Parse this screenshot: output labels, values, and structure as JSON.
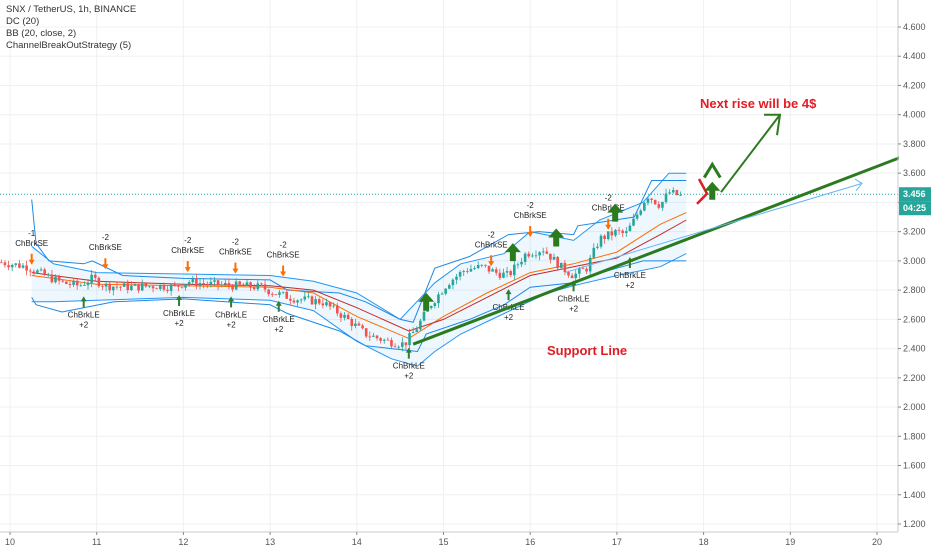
{
  "legend": {
    "symbol": "SNX / TetherUS, 1h, BINANCE",
    "dc": "DC (20)",
    "bb": "BB (20, close, 2)",
    "strategy": "ChannelBreakOutStrategy (5)"
  },
  "chart_data": {
    "type": "candlestick",
    "ylim": [
      1.2,
      4.8
    ],
    "xlim": [
      9.9,
      20.3
    ],
    "y_ticks": [
      "1.200",
      "1.400",
      "1.600",
      "1.800",
      "2.000",
      "2.200",
      "2.400",
      "2.600",
      "2.800",
      "3.000",
      "3.200",
      "3.400",
      "3.600",
      "3.800",
      "4.000",
      "4.200",
      "4.400",
      "4.600"
    ],
    "x_ticks": [
      {
        "x": 10,
        "label": "10"
      },
      {
        "x": 11,
        "label": "11"
      },
      {
        "x": 12,
        "label": "12"
      },
      {
        "x": 13,
        "label": "13"
      },
      {
        "x": 14,
        "label": "14"
      },
      {
        "x": 15,
        "label": "15"
      },
      {
        "x": 16,
        "label": "16"
      },
      {
        "x": 17,
        "label": "17"
      },
      {
        "x": 18,
        "label": "18"
      },
      {
        "x": 19,
        "label": "19"
      },
      {
        "x": 20,
        "label": "20"
      }
    ],
    "price_path": [
      [
        9.9,
        2.99
      ],
      [
        10.2,
        2.96
      ],
      [
        10.4,
        2.9
      ],
      [
        10.6,
        2.85
      ],
      [
        10.8,
        2.83
      ],
      [
        10.95,
        2.88
      ],
      [
        11.1,
        2.83
      ],
      [
        11.4,
        2.82
      ],
      [
        11.7,
        2.83
      ],
      [
        11.9,
        2.82
      ],
      [
        12.05,
        2.86
      ],
      [
        12.3,
        2.84
      ],
      [
        12.6,
        2.83
      ],
      [
        12.9,
        2.82
      ],
      [
        13.05,
        2.78
      ],
      [
        13.3,
        2.74
      ],
      [
        13.6,
        2.72
      ],
      [
        13.85,
        2.62
      ],
      [
        14.1,
        2.5
      ],
      [
        14.35,
        2.45
      ],
      [
        14.55,
        2.43
      ],
      [
        14.7,
        2.55
      ],
      [
        14.85,
        2.7
      ],
      [
        15.05,
        2.85
      ],
      [
        15.25,
        2.94
      ],
      [
        15.45,
        2.96
      ],
      [
        15.6,
        2.92
      ],
      [
        15.75,
        2.9
      ],
      [
        15.95,
        3.05
      ],
      [
        16.15,
        3.08
      ],
      [
        16.35,
        2.96
      ],
      [
        16.5,
        2.9
      ],
      [
        16.65,
        2.95
      ],
      [
        16.8,
        3.15
      ],
      [
        17.0,
        3.2
      ],
      [
        17.1,
        3.18
      ],
      [
        17.2,
        3.28
      ],
      [
        17.35,
        3.45
      ],
      [
        17.5,
        3.38
      ],
      [
        17.6,
        3.47
      ],
      [
        17.75,
        3.44
      ]
    ],
    "current_price": "3.456",
    "time_to_close": "04:25",
    "dc_upper": [
      [
        10.25,
        3.42
      ],
      [
        10.3,
        3.12
      ],
      [
        10.45,
        3.0
      ],
      [
        10.85,
        2.98
      ],
      [
        10.95,
        3.0
      ],
      [
        11.3,
        2.9
      ],
      [
        12.0,
        2.88
      ],
      [
        13.0,
        2.87
      ],
      [
        13.2,
        2.8
      ],
      [
        13.8,
        2.78
      ],
      [
        14.1,
        2.72
      ],
      [
        14.5,
        2.6
      ],
      [
        14.65,
        2.58
      ],
      [
        14.9,
        2.95
      ],
      [
        15.3,
        3.03
      ],
      [
        15.75,
        3.18
      ],
      [
        16.1,
        3.2
      ],
      [
        16.5,
        3.18
      ],
      [
        16.55,
        3.24
      ],
      [
        17.2,
        3.3
      ],
      [
        17.4,
        3.55
      ],
      [
        17.8,
        3.55
      ]
    ],
    "dc_lower": [
      [
        10.25,
        2.75
      ],
      [
        10.3,
        2.7
      ],
      [
        10.6,
        2.65
      ],
      [
        11.2,
        2.72
      ],
      [
        12.0,
        2.74
      ],
      [
        13.0,
        2.7
      ],
      [
        13.2,
        2.64
      ],
      [
        13.8,
        2.52
      ],
      [
        14.1,
        2.42
      ],
      [
        14.4,
        2.4
      ],
      [
        14.7,
        2.38
      ],
      [
        14.8,
        2.5
      ],
      [
        15.3,
        2.6
      ],
      [
        15.7,
        2.7
      ],
      [
        16.0,
        2.82
      ],
      [
        16.5,
        2.85
      ],
      [
        16.6,
        2.88
      ],
      [
        17.0,
        2.95
      ],
      [
        17.3,
        3.0
      ],
      [
        17.8,
        3.0
      ]
    ],
    "bb_upper": [
      [
        10.25,
        3.1
      ],
      [
        10.5,
        2.98
      ],
      [
        11.0,
        2.92
      ],
      [
        12.0,
        2.91
      ],
      [
        13.0,
        2.9
      ],
      [
        13.5,
        2.86
      ],
      [
        14.0,
        2.78
      ],
      [
        14.5,
        2.6
      ],
      [
        14.9,
        2.85
      ],
      [
        15.2,
        2.98
      ],
      [
        15.7,
        3.05
      ],
      [
        16.0,
        3.2
      ],
      [
        16.5,
        3.14
      ],
      [
        16.8,
        3.28
      ],
      [
        17.3,
        3.4
      ],
      [
        17.6,
        3.6
      ],
      [
        17.8,
        3.6
      ]
    ],
    "bb_lower": [
      [
        10.25,
        2.72
      ],
      [
        10.5,
        2.72
      ],
      [
        11.0,
        2.73
      ],
      [
        12.0,
        2.75
      ],
      [
        13.0,
        2.73
      ],
      [
        13.5,
        2.66
      ],
      [
        14.0,
        2.45
      ],
      [
        14.4,
        2.33
      ],
      [
        14.7,
        2.28
      ],
      [
        14.9,
        2.38
      ],
      [
        15.2,
        2.5
      ],
      [
        15.7,
        2.64
      ],
      [
        16.2,
        2.78
      ],
      [
        16.5,
        2.83
      ],
      [
        17.0,
        2.9
      ],
      [
        17.5,
        2.96
      ],
      [
        17.8,
        3.05
      ]
    ],
    "ma": [
      [
        10.25,
        2.9
      ],
      [
        11.0,
        2.84
      ],
      [
        12.0,
        2.83
      ],
      [
        13.0,
        2.82
      ],
      [
        13.5,
        2.78
      ],
      [
        14.0,
        2.62
      ],
      [
        14.6,
        2.47
      ],
      [
        15.0,
        2.62
      ],
      [
        15.5,
        2.78
      ],
      [
        16.0,
        2.92
      ],
      [
        16.5,
        2.98
      ],
      [
        17.0,
        3.06
      ],
      [
        17.5,
        3.25
      ],
      [
        17.8,
        3.33
      ]
    ],
    "ma_red": [
      [
        10.25,
        2.92
      ],
      [
        11.0,
        2.86
      ],
      [
        12.0,
        2.84
      ],
      [
        13.0,
        2.83
      ],
      [
        13.5,
        2.8
      ],
      [
        14.0,
        2.68
      ],
      [
        14.6,
        2.52
      ],
      [
        15.0,
        2.6
      ],
      [
        15.5,
        2.75
      ],
      [
        16.0,
        2.9
      ],
      [
        16.5,
        2.96
      ],
      [
        17.0,
        3.02
      ],
      [
        17.5,
        3.18
      ],
      [
        17.8,
        3.28
      ]
    ],
    "signals": [
      {
        "kind": "short",
        "x": 10.25,
        "y": 2.98,
        "label": "ChBrkSE",
        "qty": "-1"
      },
      {
        "kind": "short",
        "x": 11.1,
        "y": 2.95,
        "label": "ChBrkSE",
        "qty": "-2"
      },
      {
        "kind": "short",
        "x": 12.05,
        "y": 2.93,
        "label": "ChBrkSE",
        "qty": "-2"
      },
      {
        "kind": "short",
        "x": 12.6,
        "y": 2.92,
        "label": "ChBrkSE",
        "qty": "-2"
      },
      {
        "kind": "short",
        "x": 13.15,
        "y": 2.9,
        "label": "ChBrkSE",
        "qty": "-2"
      },
      {
        "kind": "short",
        "x": 15.55,
        "y": 2.97,
        "label": "ChBrkSE",
        "qty": "-2"
      },
      {
        "kind": "short",
        "x": 16.0,
        "y": 3.17,
        "label": "ChBrkSE",
        "qty": "-2"
      },
      {
        "kind": "short",
        "x": 16.9,
        "y": 3.22,
        "label": "ChBrkSE",
        "qty": "-2"
      },
      {
        "kind": "long",
        "x": 10.85,
        "y": 2.75,
        "label": "ChBrkLE",
        "qty": "+2"
      },
      {
        "kind": "long",
        "x": 11.95,
        "y": 2.76,
        "label": "ChBrkLE",
        "qty": "+2"
      },
      {
        "kind": "long",
        "x": 12.55,
        "y": 2.75,
        "label": "ChBrkLE",
        "qty": "+2"
      },
      {
        "kind": "long",
        "x": 13.1,
        "y": 2.72,
        "label": "ChBrkLE",
        "qty": "+2"
      },
      {
        "kind": "long",
        "x": 14.6,
        "y": 2.4,
        "label": "ChBrkLE",
        "qty": "+2"
      },
      {
        "kind": "long",
        "x": 15.75,
        "y": 2.8,
        "label": "ChBrkLE",
        "qty": "+2"
      },
      {
        "kind": "long",
        "x": 16.5,
        "y": 2.86,
        "label": "ChBrkLE",
        "qty": "+2"
      },
      {
        "kind": "long",
        "x": 17.15,
        "y": 3.02,
        "label": "ChBrkLE",
        "qty": "+2"
      }
    ],
    "annotations": {
      "next_rise": "Next rise will be 4$",
      "support": "Support Line"
    }
  }
}
